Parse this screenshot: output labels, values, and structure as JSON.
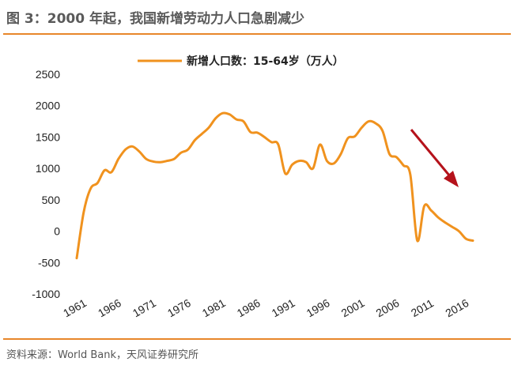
{
  "figure": {
    "title": "图 3：2000 年起，我国新增劳动力人口急剧减少",
    "source": "资料来源：World Bank，天风证券研究所"
  },
  "colors": {
    "accent": "#e8862a",
    "line": "#f0921e",
    "arrow": "#b5121b"
  },
  "chart_data": {
    "type": "line",
    "title": "",
    "xlabel": "",
    "ylabel": "",
    "ylim": [
      -1000,
      2500
    ],
    "yticks": [
      2500,
      2000,
      1500,
      1000,
      500,
      0,
      -500,
      -1000
    ],
    "xlim": [
      1961,
      2018
    ],
    "xticks": [
      1961,
      1966,
      1971,
      1976,
      1981,
      1986,
      1991,
      1996,
      2001,
      2006,
      2011,
      2016
    ],
    "grid": false,
    "legend_position": "top-center",
    "annotations": [
      "downward-trend-arrow"
    ],
    "series": [
      {
        "name": "新增人口数：15-64岁（万人）",
        "x": [
          1961,
          1962,
          1963,
          1964,
          1965,
          1966,
          1967,
          1968,
          1969,
          1970,
          1971,
          1972,
          1973,
          1974,
          1975,
          1976,
          1977,
          1978,
          1979,
          1980,
          1981,
          1982,
          1983,
          1984,
          1985,
          1986,
          1987,
          1988,
          1989,
          1990,
          1991,
          1992,
          1993,
          1994,
          1995,
          1996,
          1997,
          1998,
          1999,
          2000,
          2001,
          2002,
          2003,
          2004,
          2005,
          2006,
          2007,
          2008,
          2009,
          2010,
          2011,
          2012,
          2013,
          2014,
          2015,
          2016,
          2017,
          2018
        ],
        "values": [
          -430,
          300,
          680,
          770,
          970,
          940,
          1150,
          1300,
          1350,
          1270,
          1150,
          1110,
          1100,
          1120,
          1150,
          1250,
          1300,
          1450,
          1550,
          1650,
          1800,
          1880,
          1860,
          1780,
          1750,
          1580,
          1570,
          1500,
          1420,
          1380,
          920,
          1060,
          1120,
          1100,
          1000,
          1380,
          1120,
          1080,
          1230,
          1480,
          1510,
          1650,
          1750,
          1720,
          1600,
          1230,
          1180,
          1050,
          900,
          -150,
          400,
          330,
          220,
          140,
          70,
          0,
          -120,
          -150
        ]
      }
    ]
  }
}
